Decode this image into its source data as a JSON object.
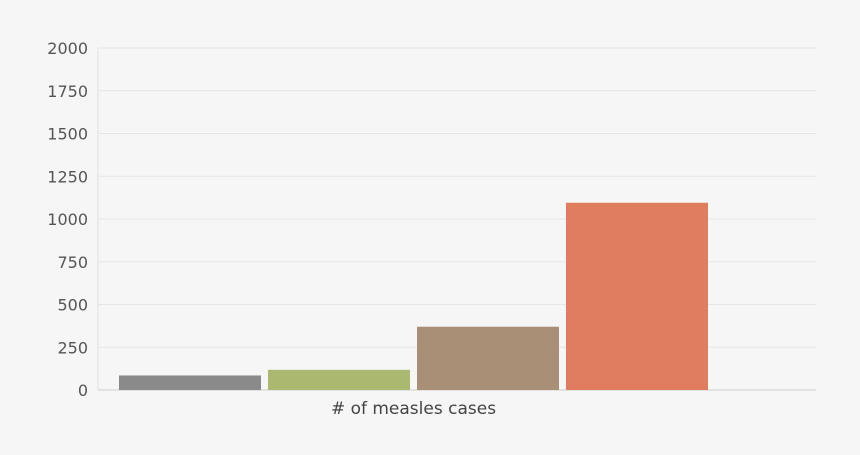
{
  "chart_data": {
    "type": "bar",
    "categories": [
      "# of measles cases"
    ],
    "series": [
      {
        "values": [
          85
        ],
        "color": "#8a8a8a"
      },
      {
        "values": [
          118
        ],
        "color": "#aab870"
      },
      {
        "values": [
          370
        ],
        "color": "#a88f76"
      },
      {
        "values": [
          1095
        ],
        "color": "#e07d5e"
      }
    ],
    "y_ticks": [
      "0",
      "250",
      "500",
      "750",
      "1000",
      "1250",
      "1500",
      "1750",
      "2000"
    ],
    "ylim": [
      0,
      2000
    ],
    "grid": true,
    "legend": "none"
  }
}
